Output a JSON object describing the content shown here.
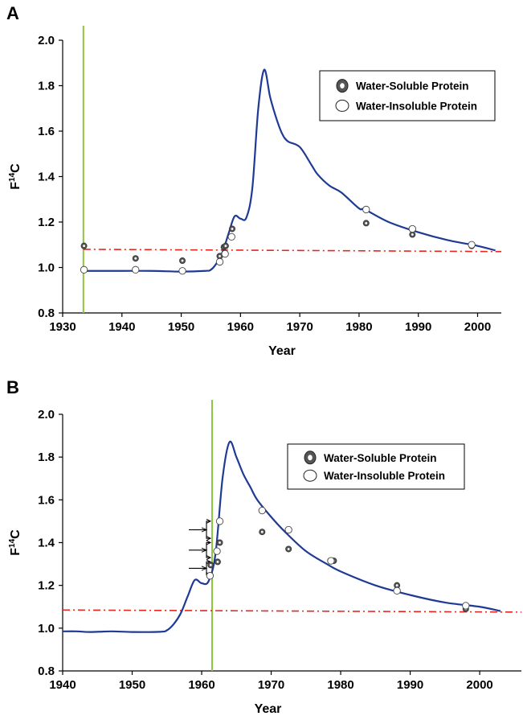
{
  "chart_data": [
    {
      "panel": "A",
      "type": "line",
      "xlabel": "Year",
      "ylabel": "F14C",
      "ylabel_main": "F",
      "ylabel_sup": "14",
      "ylabel_tail": "C",
      "xlim": [
        1930,
        2004
      ],
      "ylim": [
        0.8,
        2.0
      ],
      "xticks": [
        "1930",
        "1940",
        "1950",
        "1960",
        "1970",
        "1980",
        "1990",
        "2000"
      ],
      "yticks": [
        "0.8",
        "1.0",
        "1.2",
        "1.4",
        "1.6",
        "1.8",
        "2.0"
      ],
      "vertical_marker_x": 1933.5,
      "reference_line_y": [
        1.08,
        1.07
      ],
      "legend_position": "top-right",
      "legend": [
        "Water-Soluble Protein",
        "Water-Insoluble Protein"
      ],
      "colors": {
        "curve": "#1f3a93",
        "reference": "#e8261f",
        "marker": "#8dc63f"
      },
      "curve": [
        [
          1933.5,
          0.985
        ],
        [
          1940,
          0.985
        ],
        [
          1945,
          0.985
        ],
        [
          1950,
          0.982
        ],
        [
          1954,
          0.985
        ],
        [
          1955,
          0.99
        ],
        [
          1956,
          1.02
        ],
        [
          1957,
          1.07
        ],
        [
          1958,
          1.15
        ],
        [
          1959,
          1.225
        ],
        [
          1960,
          1.215
        ],
        [
          1961,
          1.22
        ],
        [
          1962,
          1.35
        ],
        [
          1963,
          1.7
        ],
        [
          1964,
          1.87
        ],
        [
          1965,
          1.75
        ],
        [
          1966,
          1.66
        ],
        [
          1967,
          1.59
        ],
        [
          1968,
          1.555
        ],
        [
          1970,
          1.53
        ],
        [
          1972,
          1.45
        ],
        [
          1973,
          1.41
        ],
        [
          1975,
          1.36
        ],
        [
          1977,
          1.33
        ],
        [
          1980,
          1.26
        ],
        [
          1981,
          1.255
        ],
        [
          1985,
          1.2
        ],
        [
          1990,
          1.155
        ],
        [
          1995,
          1.12
        ],
        [
          2000,
          1.095
        ],
        [
          2003,
          1.075
        ]
      ],
      "series": [
        {
          "name": "Water-Soluble Protein",
          "points": [
            [
              1933.6,
              1.095
            ],
            [
              1942.3,
              1.04
            ],
            [
              1950.2,
              1.03
            ],
            [
              1956.5,
              1.05
            ],
            [
              1957.2,
              1.09
            ],
            [
              1957.5,
              1.095
            ],
            [
              1958.6,
              1.17
            ],
            [
              1981.2,
              1.195
            ],
            [
              1989,
              1.145
            ],
            [
              1999,
              1.095
            ]
          ]
        },
        {
          "name": "Water-Insoluble Protein",
          "points": [
            [
              1933.6,
              0.99
            ],
            [
              1942.3,
              0.99
            ],
            [
              1950.2,
              0.985
            ],
            [
              1956.5,
              1.025
            ],
            [
              1957.4,
              1.06
            ],
            [
              1958.5,
              1.135
            ],
            [
              1981.2,
              1.255
            ],
            [
              1989,
              1.17
            ],
            [
              1999,
              1.1
            ]
          ]
        }
      ]
    },
    {
      "panel": "B",
      "type": "line",
      "xlabel": "Year",
      "ylabel": "F14C",
      "ylabel_main": "F",
      "ylabel_sup": "14",
      "ylabel_tail": "C",
      "xlim": [
        1940,
        2006
      ],
      "ylim": [
        0.8,
        2.0
      ],
      "xticks": [
        "1940",
        "1950",
        "1960",
        "1970",
        "1980",
        "1990",
        "2000"
      ],
      "yticks": [
        "0.8",
        "1.0",
        "1.2",
        "1.4",
        "1.6",
        "1.8",
        "2.0"
      ],
      "vertical_marker_x": 1961.5,
      "reference_line_y": [
        1.085,
        1.075
      ],
      "legend_position": "top-right",
      "legend": [
        "Water-Soluble Protein",
        "Water-Insoluble Protein"
      ],
      "colors": {
        "curve": "#1f3a93",
        "reference": "#e8261f",
        "marker": "#8dc63f"
      },
      "curve": [
        [
          1940,
          0.985
        ],
        [
          1942,
          0.985
        ],
        [
          1944,
          0.982
        ],
        [
          1947,
          0.985
        ],
        [
          1950,
          0.982
        ],
        [
          1954,
          0.983
        ],
        [
          1955,
          0.99
        ],
        [
          1956,
          1.02
        ],
        [
          1957,
          1.07
        ],
        [
          1958,
          1.15
        ],
        [
          1959,
          1.225
        ],
        [
          1960,
          1.21
        ],
        [
          1961,
          1.22
        ],
        [
          1962,
          1.35
        ],
        [
          1963,
          1.7
        ],
        [
          1964,
          1.87
        ],
        [
          1965,
          1.8
        ],
        [
          1966,
          1.72
        ],
        [
          1967,
          1.66
        ],
        [
          1968,
          1.6
        ],
        [
          1970,
          1.52
        ],
        [
          1972,
          1.45
        ],
        [
          1975,
          1.36
        ],
        [
          1978,
          1.3
        ],
        [
          1980,
          1.265
        ],
        [
          1985,
          1.2
        ],
        [
          1990,
          1.155
        ],
        [
          1995,
          1.12
        ],
        [
          2000,
          1.1
        ],
        [
          2003,
          1.08
        ]
      ],
      "series": [
        {
          "name": "Water-Soluble Protein",
          "points": [
            [
              1961.3,
              1.295
            ],
            [
              1962.3,
              1.31
            ],
            [
              1962.6,
              1.4
            ],
            [
              1968.7,
              1.45
            ],
            [
              1972.5,
              1.37
            ],
            [
              1979,
              1.315
            ],
            [
              1988.1,
              1.2
            ],
            [
              1998,
              1.09
            ]
          ]
        },
        {
          "name": "Water-Insoluble Protein",
          "points": [
            [
              1961.2,
              1.245
            ],
            [
              1962.2,
              1.36
            ],
            [
              1962.6,
              1.5
            ],
            [
              1968.7,
              1.55
            ],
            [
              1972.5,
              1.46
            ],
            [
              1978.6,
              1.315
            ],
            [
              1988.1,
              1.175
            ],
            [
              1998,
              1.105
            ]
          ]
        }
      ],
      "annotations": {
        "arrows": 3,
        "arrow_tips_y": [
          [
            1.25,
            1.31
          ],
          [
            1.33,
            1.4
          ],
          [
            1.42,
            1.5
          ]
        ]
      }
    }
  ]
}
